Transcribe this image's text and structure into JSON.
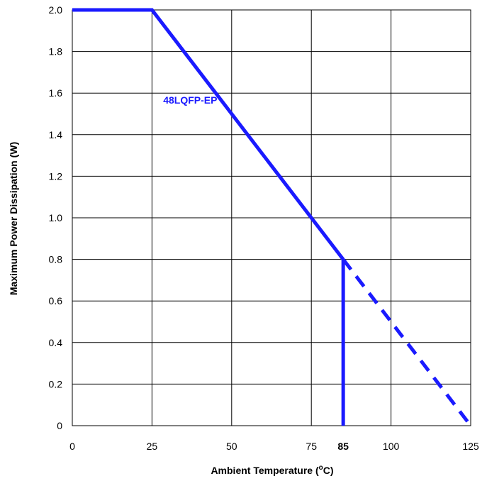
{
  "chart_data": {
    "type": "line",
    "xlabel": "Ambient Temperature (",
    "xlabel_sup": "o",
    "xlabel_end": "C)",
    "ylabel": "Maximum Power Dissipation (W)",
    "xlim": [
      0,
      125
    ],
    "ylim": [
      0,
      2.0
    ],
    "x_ticks": [
      {
        "value": 0,
        "label": "0",
        "bold": false
      },
      {
        "value": 25,
        "label": "25",
        "bold": false
      },
      {
        "value": 50,
        "label": "50",
        "bold": false
      },
      {
        "value": 75,
        "label": "75",
        "bold": false
      },
      {
        "value": 85,
        "label": "85",
        "bold": true
      },
      {
        "value": 100,
        "label": "100",
        "bold": false
      },
      {
        "value": 125,
        "label": "125",
        "bold": false
      }
    ],
    "x_gridlines": [
      0,
      25,
      50,
      75,
      100,
      125
    ],
    "y_ticks": [
      {
        "value": 0,
        "label": "0"
      },
      {
        "value": 0.2,
        "label": "0.2"
      },
      {
        "value": 0.4,
        "label": "0.4"
      },
      {
        "value": 0.6,
        "label": "0.6"
      },
      {
        "value": 0.8,
        "label": "0.8"
      },
      {
        "value": 1.0,
        "label": "1.0"
      },
      {
        "value": 1.2,
        "label": "1.2"
      },
      {
        "value": 1.4,
        "label": "1.4"
      },
      {
        "value": 1.6,
        "label": "1.6"
      },
      {
        "value": 1.8,
        "label": "1.8"
      },
      {
        "value": 2.0,
        "label": "2.0"
      }
    ],
    "grid": true,
    "series": [
      {
        "name": "48LQFP-EP",
        "color": "#1a1aff",
        "solid": [
          [
            0,
            2.0
          ],
          [
            25,
            2.0
          ],
          [
            85,
            0.8
          ]
        ],
        "dashed": [
          [
            85,
            0.8
          ],
          [
            125,
            0.0
          ]
        ],
        "cutoff": [
          [
            85,
            0.8
          ],
          [
            85,
            0.0
          ]
        ]
      }
    ],
    "annotations": [
      {
        "text": "48LQFP-EP",
        "x": 37,
        "y": 1.55,
        "color": "#1a1aff"
      }
    ]
  }
}
